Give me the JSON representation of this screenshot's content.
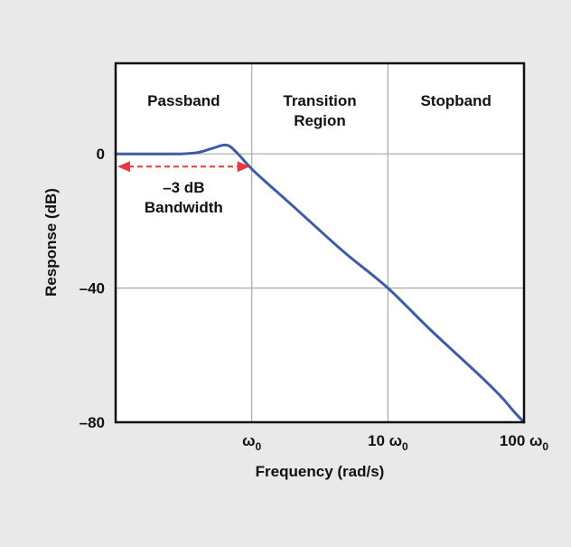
{
  "chart_data": {
    "type": "line",
    "title": "",
    "xlabel": "Frequency (rad/s)",
    "ylabel": "Response (dB)",
    "xscale": "log",
    "xlim": [
      0.1,
      100
    ],
    "ylim": [
      -80,
      27
    ],
    "grid": true,
    "x_ticks": [
      {
        "value": 1,
        "base": "ω",
        "sub": "0"
      },
      {
        "value": 10,
        "base": "10 ω",
        "sub": "0"
      },
      {
        "value": 100,
        "base": "100 ω",
        "sub": "0"
      }
    ],
    "y_ticks": [
      {
        "value": 0,
        "label": "0"
      },
      {
        "value": -40,
        "label": "–40"
      },
      {
        "value": -80,
        "label": "–80"
      }
    ],
    "regions": [
      {
        "label_lines": [
          "Passband"
        ],
        "from": 0.1,
        "to": 1
      },
      {
        "label_lines": [
          "Transition",
          "Region"
        ],
        "from": 1,
        "to": 10
      },
      {
        "label_lines": [
          "Stopband"
        ],
        "from": 10,
        "to": 100
      }
    ],
    "annotation": {
      "label_lines": [
        "–3 dB",
        "Bandwidth"
      ],
      "from": 0.1,
      "to": 1,
      "y": -3.8,
      "color": "#e8393f"
    },
    "series": [
      {
        "color": "#3f5aa6",
        "points": [
          [
            0.1,
            0
          ],
          [
            0.2,
            0
          ],
          [
            0.3,
            0
          ],
          [
            0.4,
            0.4
          ],
          [
            0.5,
            1.5
          ],
          [
            0.6,
            2.5
          ],
          [
            0.65,
            2.6
          ],
          [
            0.7,
            2.1
          ],
          [
            0.8,
            -0.2
          ],
          [
            0.9,
            -2.5
          ],
          [
            1.0,
            -4.5
          ],
          [
            1.2,
            -7.5
          ],
          [
            1.5,
            -11
          ],
          [
            2,
            -15.5
          ],
          [
            3,
            -22
          ],
          [
            5,
            -30
          ],
          [
            10,
            -40
          ],
          [
            20,
            -52
          ],
          [
            50,
            -67
          ],
          [
            70,
            -73
          ],
          [
            85,
            -77
          ],
          [
            100,
            -80
          ]
        ]
      }
    ]
  }
}
